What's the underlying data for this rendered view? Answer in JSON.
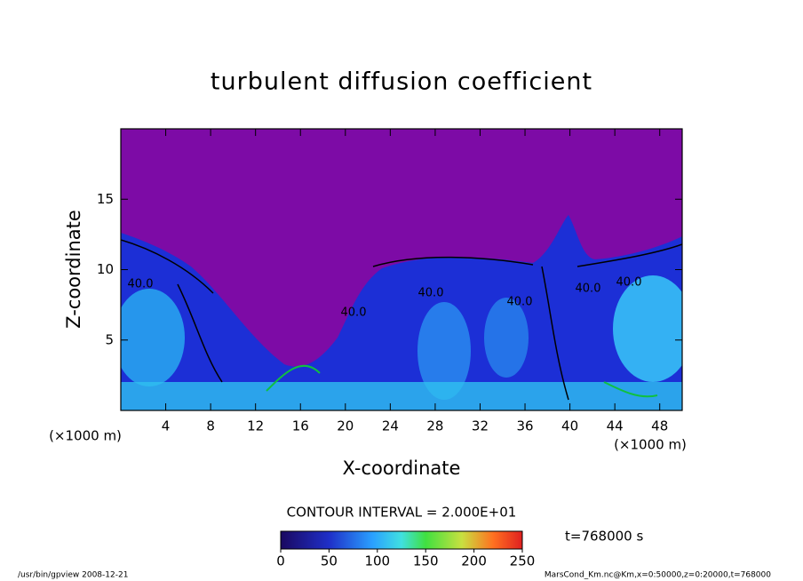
{
  "chart_data": {
    "type": "contour",
    "title": "turbulent diffusion coefficient",
    "xlabel": "X-coordinate",
    "ylabel": "Z-coordinate",
    "x_unit_left": "(×1000 m)",
    "x_unit_right": "(×1000 m)",
    "xlim": [
      0,
      50
    ],
    "xticks": [
      4,
      8,
      12,
      16,
      20,
      24,
      28,
      32,
      36,
      40,
      44,
      48
    ],
    "ylim": [
      0,
      20
    ],
    "yticks": [
      5,
      10,
      15
    ],
    "contour_labels": [
      {
        "value": 40,
        "label": "40.0"
      },
      {
        "value": 40,
        "label": "40.0"
      },
      {
        "value": 40,
        "label": "40.0"
      },
      {
        "value": 40,
        "label": "40.0"
      },
      {
        "value": 40,
        "label": "40.0"
      },
      {
        "value": 40,
        "label": "40.0"
      }
    ],
    "contour_interval_text": "CONTOUR INTERVAL = 2.000E+01",
    "colorbar": {
      "lim": [
        0,
        250
      ],
      "ticks": [
        0,
        50,
        100,
        150,
        200,
        250
      ]
    },
    "time_text": "t=768000 s",
    "footer_left": "/usr/bin/gpview   2008-12-21",
    "footer_right": "MarsCond_Km.nc@Km,x=0:50000,z=0:20000,t=768000"
  }
}
